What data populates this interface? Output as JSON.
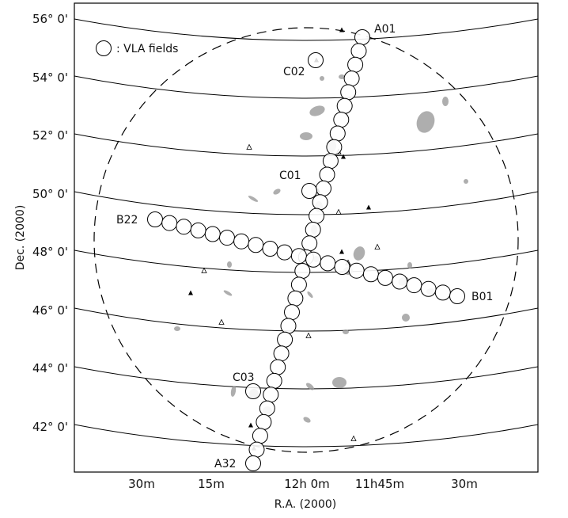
{
  "chart_data": {
    "type": "scatter",
    "xlabel": "R.A. (2000)",
    "ylabel": "Dec. (2000)",
    "x_tick_labels": [
      "30m",
      "15m",
      "12h 0m",
      "11h45m",
      "30m"
    ],
    "y_tick_labels": [
      "56° 0'",
      "54° 0'",
      "52° 0'",
      "50° 0'",
      "48° 0'",
      "46° 0'",
      "44° 0'",
      "42° 0'"
    ],
    "legend": {
      "label": ": VLA fields",
      "placement": "top-left"
    },
    "field_labels": [
      "A01",
      "A32",
      "B01",
      "B22",
      "C01",
      "C02",
      "C03"
    ],
    "series": [
      {
        "name": "VLA fields",
        "strips": [
          {
            "start": "A01",
            "end": "A32",
            "count": 32
          },
          {
            "start": "B01",
            "end": "B22",
            "count": 22
          },
          {
            "fields": [
              "C01",
              "C02",
              "C03"
            ]
          }
        ]
      }
    ]
  }
}
